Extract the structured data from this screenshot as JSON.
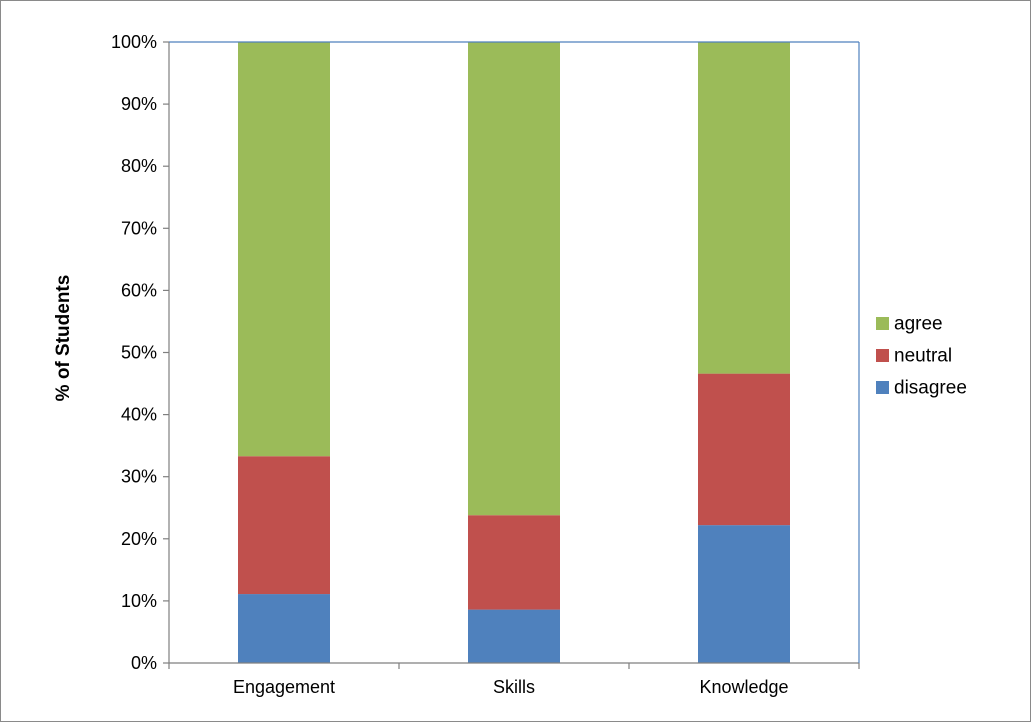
{
  "chart_data": {
    "type": "bar",
    "stacking": "percent",
    "title": "",
    "xlabel": "",
    "ylabel": "% of Students",
    "ylim": [
      0,
      100
    ],
    "y_ticks": [
      "0%",
      "10%",
      "20%",
      "30%",
      "40%",
      "50%",
      "60%",
      "70%",
      "80%",
      "90%",
      "100%"
    ],
    "categories": [
      "Engagement",
      "Skills",
      "Knowledge"
    ],
    "series": [
      {
        "name": "disagree",
        "color": "#4F81BD",
        "values": [
          11.1,
          8.6,
          22.2
        ]
      },
      {
        "name": "neutral",
        "color": "#C0504D",
        "values": [
          22.2,
          15.2,
          24.4
        ]
      },
      {
        "name": "agree",
        "color": "#9BBB59",
        "values": [
          66.7,
          76.2,
          53.4
        ]
      }
    ],
    "legend": {
      "position": "right",
      "order": [
        "agree",
        "neutral",
        "disagree"
      ]
    },
    "grid": false,
    "plot_border_color": "#4F81BD"
  }
}
